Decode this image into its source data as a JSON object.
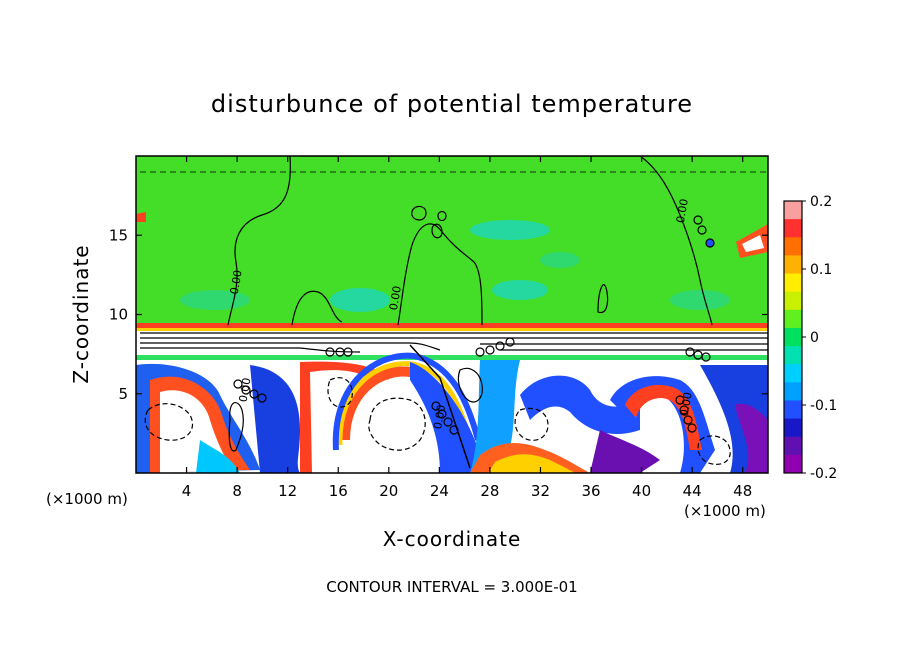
{
  "chart_data": {
    "type": "heatmap",
    "title": "disturbunce of potential temperature",
    "xlabel": "X-coordinate",
    "ylabel": "Z-coordinate",
    "x_unit_left": "(×1000 m)",
    "x_unit_right": "(×1000 m)",
    "footnote": "CONTOUR INTERVAL = 3.000E-01",
    "xlim": [
      0,
      50
    ],
    "ylim": [
      0,
      20
    ],
    "x_ticks": [
      "4",
      "8",
      "12",
      "16",
      "20",
      "24",
      "28",
      "32",
      "36",
      "40",
      "44",
      "48"
    ],
    "y_ticks": [
      "5",
      "10",
      "15"
    ],
    "colorbar": {
      "range": [
        -0.2,
        0.2
      ],
      "tick_labels": [
        "0.2",
        "0.1",
        "0",
        "-0.1",
        "-0.2"
      ],
      "colors": [
        "#f8a0a0",
        "#ff3030",
        "#ff7000",
        "#ffb000",
        "#ffee00",
        "#c8f000",
        "#60f020",
        "#00e060",
        "#00e0b0",
        "#00d0ff",
        "#00a0ff",
        "#2050ff",
        "#1818c8",
        "#6010b0",
        "#9000b0"
      ]
    },
    "contour_labels": [
      {
        "text": "0.00",
        "x": 43.5,
        "z": 16.5
      },
      {
        "text": "0.00",
        "x": 8.2,
        "z": 12.0
      },
      {
        "text": "0.00",
        "x": 20.8,
        "z": 11.0
      },
      {
        "text": "0.00",
        "x": 8.9,
        "z": 5.2
      },
      {
        "text": "0.00",
        "x": 24.3,
        "z": 3.5
      },
      {
        "text": "0.00",
        "x": 43.8,
        "z": 4.3
      }
    ],
    "regions": {
      "upper_layer": "near zero (green)",
      "interface_z": 9.0,
      "lower_layer": "mixed positive/negative perturbations"
    }
  }
}
